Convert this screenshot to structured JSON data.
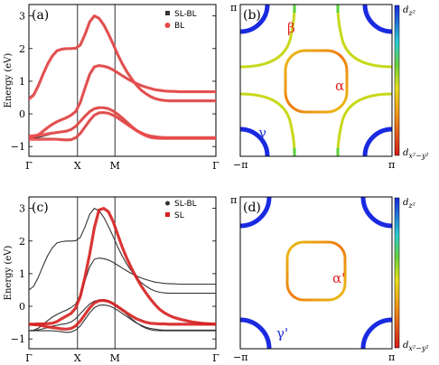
{
  "chart_data": [
    {
      "type": "line",
      "panel": "(a)",
      "ylabel": "Energy (eV)",
      "ylim": [
        -1.3,
        3.35
      ],
      "y_ticks": [
        "−1",
        "0",
        "1",
        "2",
        "3"
      ],
      "y_tick_values": [
        -1,
        0,
        1,
        2,
        3
      ],
      "x_ticks": [
        "Γ",
        "X",
        "M",
        "Γ"
      ],
      "legend": [
        {
          "name": "SL-BL",
          "color": "#333333",
          "marker": "square"
        },
        {
          "name": "BL",
          "color": "#e84a4a",
          "marker": "circle"
        }
      ],
      "legend_position": "top-right",
      "x": [
        0,
        0.25,
        0.5,
        0.75,
        1,
        1.25,
        1.5,
        1.75,
        2,
        2.25,
        2.5,
        2.75,
        3,
        3.25,
        3.5,
        3.75,
        4,
        4.25,
        4.5,
        4.75,
        5,
        5.25,
        5.5,
        5.75,
        6,
        6.25,
        6.5,
        6.75,
        7,
        7.25,
        7.5,
        7.75,
        8,
        8.25,
        8.5,
        8.75,
        9,
        9.25,
        9.5,
        9.75,
        10
      ],
      "series": [
        {
          "name": "SL-BL",
          "color": "#333333",
          "values": [
            0.5,
            0.61,
            0.89,
            1.23,
            1.55,
            1.79,
            1.94,
            1.98,
            2,
            2,
            2.01,
            2.11,
            2.43,
            2.82,
            3,
            2.93,
            2.73,
            2.45,
            2.14,
            1.82,
            1.53,
            1.28,
            1.07,
            0.88,
            0.73,
            0.62,
            0.53,
            0.47,
            0.43,
            0.41,
            0.4,
            0.4,
            0.4,
            0.4,
            0.4,
            0.4,
            0.4,
            0.4,
            0.4,
            0.4,
            0.4
          ]
        },
        {
          "name": "SL-BL",
          "color": "#333333",
          "values": [
            -0.75,
            -0.73,
            -0.67,
            -0.56,
            -0.44,
            -0.33,
            -0.25,
            -0.18,
            -0.12,
            -0.04,
            0.07,
            0.35,
            0.79,
            1.21,
            1.44,
            1.48,
            1.46,
            1.42,
            1.35,
            1.26,
            1.17,
            1.08,
            1,
            0.93,
            0.87,
            0.82,
            0.78,
            0.74,
            0.72,
            0.7,
            0.69,
            0.69,
            0.68,
            0.68,
            0.68,
            0.68,
            0.68,
            0.68,
            0.68,
            0.68,
            0.68
          ]
        },
        {
          "name": "SL-BL",
          "color": "#333333",
          "values": [
            -0.75,
            -0.74,
            -0.72,
            -0.69,
            -0.65,
            -0.61,
            -0.58,
            -0.55,
            -0.53,
            -0.48,
            -0.38,
            -0.23,
            -0.07,
            0.07,
            0.16,
            0.19,
            0.19,
            0.16,
            0.09,
            -0.01,
            -0.13,
            -0.26,
            -0.39,
            -0.5,
            -0.6,
            -0.67,
            -0.72,
            -0.74,
            -0.75,
            -0.75,
            -0.75,
            -0.75,
            -0.75,
            -0.75,
            -0.75,
            -0.75,
            -0.75,
            -0.75,
            -0.75,
            -0.75,
            -0.75
          ]
        },
        {
          "name": "SL-BL",
          "color": "#333333",
          "values": [
            -0.75,
            -0.75,
            -0.75,
            -0.75,
            -0.75,
            -0.75,
            -0.76,
            -0.78,
            -0.8,
            -0.79,
            -0.73,
            -0.6,
            -0.4,
            -0.2,
            -0.04,
            0.03,
            0.04,
            0.02,
            -0.04,
            -0.12,
            -0.22,
            -0.32,
            -0.42,
            -0.51,
            -0.58,
            -0.64,
            -0.68,
            -0.7,
            -0.72,
            -0.73,
            -0.73,
            -0.73,
            -0.73,
            -0.73,
            -0.73,
            -0.73,
            -0.73,
            -0.73,
            -0.73,
            -0.73,
            -0.73
          ]
        },
        {
          "name": "BL",
          "color": "#e84a4a",
          "values": [
            0.45,
            0.57,
            0.86,
            1.2,
            1.52,
            1.77,
            1.93,
            1.98,
            2,
            2,
            2.01,
            2.11,
            2.43,
            2.82,
            3,
            2.93,
            2.73,
            2.45,
            2.14,
            1.82,
            1.53,
            1.28,
            1.07,
            0.88,
            0.73,
            0.62,
            0.53,
            0.47,
            0.43,
            0.41,
            0.4,
            0.4,
            0.4,
            0.4,
            0.4,
            0.4,
            0.4,
            0.4,
            0.4,
            0.4,
            0.4
          ]
        },
        {
          "name": "BL",
          "color": "#e84a4a",
          "values": [
            -0.72,
            -0.7,
            -0.64,
            -0.53,
            -0.42,
            -0.32,
            -0.24,
            -0.18,
            -0.12,
            -0.04,
            0.07,
            0.35,
            0.79,
            1.21,
            1.44,
            1.48,
            1.46,
            1.42,
            1.35,
            1.26,
            1.17,
            1.08,
            1,
            0.93,
            0.87,
            0.82,
            0.78,
            0.74,
            0.72,
            0.7,
            0.69,
            0.69,
            0.68,
            0.68,
            0.68,
            0.68,
            0.68,
            0.68,
            0.68,
            0.68,
            0.68
          ]
        },
        {
          "name": "BL",
          "color": "#e84a4a",
          "values": [
            -0.68,
            -0.67,
            -0.66,
            -0.64,
            -0.61,
            -0.59,
            -0.57,
            -0.55,
            -0.53,
            -0.48,
            -0.38,
            -0.23,
            -0.07,
            0.07,
            0.16,
            0.19,
            0.19,
            0.16,
            0.09,
            -0.01,
            -0.13,
            -0.26,
            -0.39,
            -0.5,
            -0.6,
            -0.67,
            -0.72,
            -0.74,
            -0.75,
            -0.75,
            -0.75,
            -0.75,
            -0.75,
            -0.75,
            -0.75,
            -0.75,
            -0.75,
            -0.75,
            -0.75,
            -0.75,
            -0.75
          ]
        },
        {
          "name": "BL",
          "color": "#e84a4a",
          "values": [
            -0.78,
            -0.78,
            -0.78,
            -0.78,
            -0.78,
            -0.78,
            -0.78,
            -0.79,
            -0.8,
            -0.79,
            -0.73,
            -0.6,
            -0.4,
            -0.2,
            -0.04,
            0.03,
            0.04,
            0.02,
            -0.04,
            -0.12,
            -0.22,
            -0.32,
            -0.42,
            -0.51,
            -0.58,
            -0.64,
            -0.68,
            -0.7,
            -0.72,
            -0.73,
            -0.73,
            -0.73,
            -0.73,
            -0.73,
            -0.73,
            -0.73,
            -0.73,
            -0.73,
            -0.73,
            -0.73,
            -0.73
          ]
        }
      ]
    },
    {
      "type": "line",
      "panel": "(c)",
      "ylabel": "Energy (eV)",
      "ylim": [
        -1.3,
        3.35
      ],
      "y_ticks": [
        "−1",
        "0",
        "1",
        "2",
        "3"
      ],
      "y_tick_values": [
        -1,
        0,
        1,
        2,
        3
      ],
      "x_ticks": [
        "Γ",
        "X",
        "M",
        "Γ"
      ],
      "legend": [
        {
          "name": "SL-BL",
          "color": "#333333",
          "marker": "circle"
        },
        {
          "name": "SL",
          "color": "#d62020",
          "marker": "square"
        }
      ],
      "legend_position": "top-right",
      "x": [
        0,
        0.25,
        0.5,
        0.75,
        1,
        1.25,
        1.5,
        1.75,
        2,
        2.25,
        2.5,
        2.75,
        3,
        3.25,
        3.5,
        3.75,
        4,
        4.25,
        4.5,
        4.75,
        5,
        5.25,
        5.5,
        5.75,
        6,
        6.25,
        6.5,
        6.75,
        7,
        7.25,
        7.5,
        7.75,
        8,
        8.25,
        8.5,
        8.75,
        9,
        9.25,
        9.5,
        9.75,
        10
      ],
      "series": [
        {
          "name": "SL-BL",
          "color": "#333333",
          "values": [
            0.5,
            0.61,
            0.89,
            1.23,
            1.55,
            1.79,
            1.94,
            1.98,
            2,
            2,
            2.01,
            2.11,
            2.43,
            2.82,
            3,
            2.93,
            2.73,
            2.45,
            2.14,
            1.82,
            1.53,
            1.28,
            1.07,
            0.88,
            0.73,
            0.62,
            0.53,
            0.47,
            0.43,
            0.41,
            0.4,
            0.4,
            0.4,
            0.4,
            0.4,
            0.4,
            0.4,
            0.4,
            0.4,
            0.4,
            0.4
          ]
        },
        {
          "name": "SL-BL",
          "color": "#333333",
          "values": [
            -0.75,
            -0.73,
            -0.67,
            -0.56,
            -0.44,
            -0.33,
            -0.25,
            -0.18,
            -0.12,
            -0.04,
            0.07,
            0.35,
            0.79,
            1.21,
            1.44,
            1.48,
            1.46,
            1.42,
            1.35,
            1.26,
            1.17,
            1.08,
            1,
            0.93,
            0.87,
            0.82,
            0.78,
            0.74,
            0.72,
            0.7,
            0.69,
            0.69,
            0.68,
            0.68,
            0.68,
            0.68,
            0.68,
            0.68,
            0.68,
            0.68,
            0.68
          ]
        },
        {
          "name": "SL-BL",
          "color": "#333333",
          "values": [
            -0.75,
            -0.74,
            -0.72,
            -0.69,
            -0.65,
            -0.61,
            -0.58,
            -0.55,
            -0.53,
            -0.48,
            -0.38,
            -0.23,
            -0.07,
            0.07,
            0.16,
            0.19,
            0.19,
            0.16,
            0.09,
            -0.01,
            -0.13,
            -0.26,
            -0.39,
            -0.5,
            -0.6,
            -0.67,
            -0.72,
            -0.74,
            -0.75,
            -0.75,
            -0.75,
            -0.75,
            -0.75,
            -0.75,
            -0.75,
            -0.75,
            -0.75,
            -0.75,
            -0.75,
            -0.75,
            -0.75
          ]
        },
        {
          "name": "SL-BL",
          "color": "#333333",
          "values": [
            -0.75,
            -0.75,
            -0.75,
            -0.75,
            -0.75,
            -0.75,
            -0.76,
            -0.78,
            -0.8,
            -0.79,
            -0.73,
            -0.6,
            -0.4,
            -0.2,
            -0.04,
            0.03,
            0.04,
            0.02,
            -0.04,
            -0.12,
            -0.22,
            -0.32,
            -0.42,
            -0.51,
            -0.58,
            -0.64,
            -0.68,
            -0.7,
            -0.72,
            -0.73,
            -0.73,
            -0.73,
            -0.73,
            -0.73,
            -0.73,
            -0.73,
            -0.73,
            -0.73,
            -0.73,
            -0.73,
            -0.73
          ]
        },
        {
          "name": "SL",
          "color": "#d62020",
          "values": [
            -0.55,
            -0.55,
            -0.54,
            -0.54,
            -0.53,
            -0.52,
            -0.47,
            -0.38,
            -0.3,
            -0.22,
            -0.05,
            0.3,
            0.9,
            1.6,
            2.4,
            2.95,
            3,
            2.9,
            2.6,
            2.2,
            1.8,
            1.45,
            1.15,
            0.88,
            0.63,
            0.42,
            0.22,
            0.05,
            -0.1,
            -0.2,
            -0.28,
            -0.34,
            -0.38,
            -0.42,
            -0.45,
            -0.48,
            -0.5,
            -0.52,
            -0.53,
            -0.54,
            -0.55
          ]
        },
        {
          "name": "SL",
          "color": "#d62020",
          "values": [
            -0.55,
            -0.56,
            -0.57,
            -0.6,
            -0.63,
            -0.65,
            -0.67,
            -0.69,
            -0.7,
            -0.68,
            -0.6,
            -0.45,
            -0.25,
            -0.05,
            0.1,
            0.17,
            0.18,
            0.15,
            0.08,
            -0.01,
            -0.11,
            -0.21,
            -0.3,
            -0.38,
            -0.44,
            -0.49,
            -0.52,
            -0.53,
            -0.54,
            -0.54,
            -0.55,
            -0.55,
            -0.55,
            -0.55,
            -0.55,
            -0.55,
            -0.55,
            -0.55,
            -0.55,
            -0.55,
            -0.55
          ]
        }
      ]
    },
    {
      "type": "heatmap",
      "panel": "(b)",
      "x_ticks": [
        "−π",
        "π"
      ],
      "y_ticks": [
        "π"
      ],
      "colorbar_labels": [
        "d_{z^2}",
        "d_{x^2−y^2}"
      ],
      "colorbar_top_label": "d",
      "colorbar_top_sub": "z²",
      "colorbar_bottom_label": "d",
      "colorbar_bottom_sub": "x²−y²",
      "pockets": [
        {
          "name": "β",
          "color": "#e02020"
        },
        {
          "name": "α",
          "color": "#e02020"
        },
        {
          "name": "γ",
          "color": "#2030d0"
        }
      ]
    },
    {
      "type": "heatmap",
      "panel": "(d)",
      "x_ticks": [
        "−π",
        "π"
      ],
      "y_ticks": [
        "π"
      ],
      "colorbar_labels": [
        "d_{z^2}",
        "d_{x^2−y^2}"
      ],
      "colorbar_top_label": "d",
      "colorbar_top_sub": "z²",
      "colorbar_bottom_label": "d",
      "colorbar_bottom_sub": "x²−y²",
      "pockets": [
        {
          "name": "α'",
          "color": "#e02020"
        },
        {
          "name": "γ'",
          "color": "#2030d0"
        }
      ]
    }
  ]
}
